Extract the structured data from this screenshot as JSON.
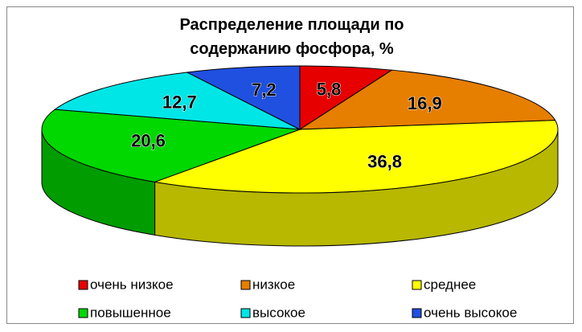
{
  "chart_data": {
    "type": "pie",
    "title": "Распределение площади по содержанию фосфора, %",
    "categories": [
      "очень низкое",
      "низкое",
      "среднее",
      "повышенное",
      "высокое",
      "очень высокое"
    ],
    "values": [
      5.8,
      16.9,
      36.8,
      20.6,
      12.7,
      7.2
    ],
    "value_labels": [
      "5,8",
      "16,9",
      "36,8",
      "20,6",
      "12,7",
      "7,2"
    ],
    "colors": [
      "#e60000",
      "#e67e00",
      "#ffff00",
      "#00d800",
      "#00e6e6",
      "#2050e0"
    ],
    "legend": "bottom"
  }
}
